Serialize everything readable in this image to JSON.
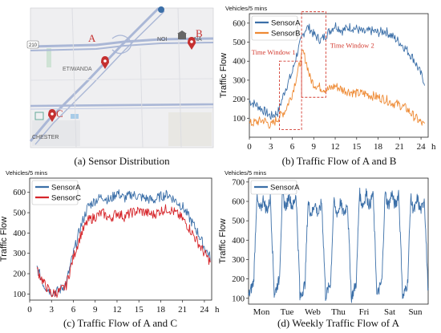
{
  "colors": {
    "blue": "#3b6fa8",
    "orange": "#ee8a34",
    "red": "#d6262b",
    "annot": "#d33b30",
    "map_bg": "#efeff1",
    "road": "#aab7d6"
  },
  "map": {
    "caption": "(a)  Sensor Distribution",
    "labels": {
      "a": "A",
      "b": "B",
      "c": "C",
      "etiwanda": "ETIWANDA",
      "noi": "NOI",
      "na": "NA",
      "chester": "CHESTER",
      "hwy210": "210"
    },
    "icons": [
      "pin-icon",
      "pin-icon",
      "pin-icon",
      "building-icon",
      "highway-shield-icon"
    ]
  },
  "chart_data": [
    {
      "id": "b",
      "type": "line",
      "caption": "(b) Traffic Flow of A and B",
      "unit_label": "Vehicles/5 mins",
      "ylabel": "Traffic Flow",
      "xlabel": "h",
      "xlim": [
        0,
        25
      ],
      "ylim": [
        0,
        650
      ],
      "xticks": [
        0,
        3,
        6,
        9,
        12,
        15,
        18,
        21,
        24
      ],
      "yticks": [
        100,
        200,
        300,
        400,
        500,
        600
      ],
      "legend": "top-left",
      "annotations": [
        "Time Window 1",
        "Time Window 2"
      ],
      "windows": [
        [
          4.2,
          7.3
        ],
        [
          7.3,
          10.7
        ]
      ],
      "series": [
        {
          "name": "SensorA",
          "color": "#3b6fa8",
          "x": [
            0,
            1,
            2,
            3,
            4,
            5,
            6,
            6.5,
            7,
            7.5,
            8,
            8.5,
            9,
            10,
            11,
            12,
            13,
            14,
            15,
            16,
            17,
            18,
            19,
            20,
            21,
            22,
            23,
            24.5
          ],
          "y": [
            190,
            170,
            140,
            110,
            130,
            250,
            340,
            420,
            480,
            540,
            580,
            570,
            540,
            510,
            550,
            590,
            560,
            580,
            570,
            550,
            560,
            550,
            560,
            530,
            500,
            460,
            410,
            290
          ]
        },
        {
          "name": "SensorB",
          "color": "#ee8a34",
          "x": [
            0,
            1,
            2,
            3,
            4,
            5,
            6,
            7,
            7.5,
            8,
            8.5,
            9,
            10,
            11,
            12,
            13,
            14,
            15,
            16,
            17,
            18,
            19,
            20,
            21,
            22,
            23,
            24.5
          ],
          "y": [
            70,
            80,
            90,
            60,
            100,
            140,
            230,
            380,
            450,
            390,
            310,
            280,
            260,
            250,
            270,
            250,
            240,
            230,
            230,
            220,
            210,
            200,
            180,
            170,
            150,
            110,
            60
          ]
        }
      ]
    },
    {
      "id": "c",
      "type": "line",
      "caption": "(c) Traffic Flow of A and C",
      "unit_label": "Vehicles/5 mins",
      "ylabel": "Traffic Flow",
      "xlabel": "h",
      "xlim": [
        0,
        25
      ],
      "ylim": [
        70,
        670
      ],
      "xticks": [
        0,
        3,
        6,
        9,
        12,
        15,
        18,
        21,
        24
      ],
      "yticks": [
        100,
        200,
        300,
        400,
        500,
        600
      ],
      "legend": "top-left",
      "series": [
        {
          "name": "SensorA",
          "color": "#3b6fa8",
          "x": [
            1,
            2,
            3,
            4,
            5,
            6,
            7,
            8,
            9,
            10,
            11,
            12,
            13,
            14,
            15,
            16,
            17,
            18,
            19,
            20,
            21,
            22,
            23,
            24,
            24.8
          ],
          "y": [
            230,
            140,
            110,
            115,
            150,
            300,
            430,
            530,
            560,
            580,
            560,
            600,
            570,
            590,
            580,
            570,
            560,
            580,
            590,
            560,
            530,
            470,
            410,
            330,
            280
          ]
        },
        {
          "name": "SensorC",
          "color": "#d6262b",
          "x": [
            1,
            2,
            3,
            4,
            5,
            6,
            7,
            8,
            9,
            10,
            11,
            12,
            13,
            14,
            15,
            16,
            17,
            18,
            19,
            20,
            21,
            22,
            23,
            24,
            24.8
          ],
          "y": [
            220,
            150,
            100,
            110,
            140,
            280,
            390,
            460,
            480,
            500,
            470,
            500,
            480,
            500,
            510,
            500,
            490,
            510,
            520,
            500,
            470,
            420,
            360,
            300,
            260
          ]
        }
      ]
    },
    {
      "id": "d",
      "type": "line",
      "caption": "(d) Weekly Traffic Flow of A",
      "unit_label": "Vehicles/5 mins",
      "ylabel": "Traffic Flow",
      "xlim": [
        0,
        7
      ],
      "ylim": [
        70,
        720
      ],
      "xticks": [
        "Mon",
        "Tue",
        "Web",
        "Thu",
        "Fri",
        "Sat",
        "Sun"
      ],
      "yticks": [
        100,
        200,
        300,
        400,
        500,
        600,
        700
      ],
      "legend": "top-left",
      "series": [
        {
          "name": "SensorA",
          "color": "#3b6fa8",
          "daily_peak": [
            620,
            640,
            600,
            600,
            650,
            650,
            620
          ],
          "daily_trough": [
            110,
            120,
            100,
            110,
            100,
            110,
            100
          ]
        }
      ]
    }
  ]
}
